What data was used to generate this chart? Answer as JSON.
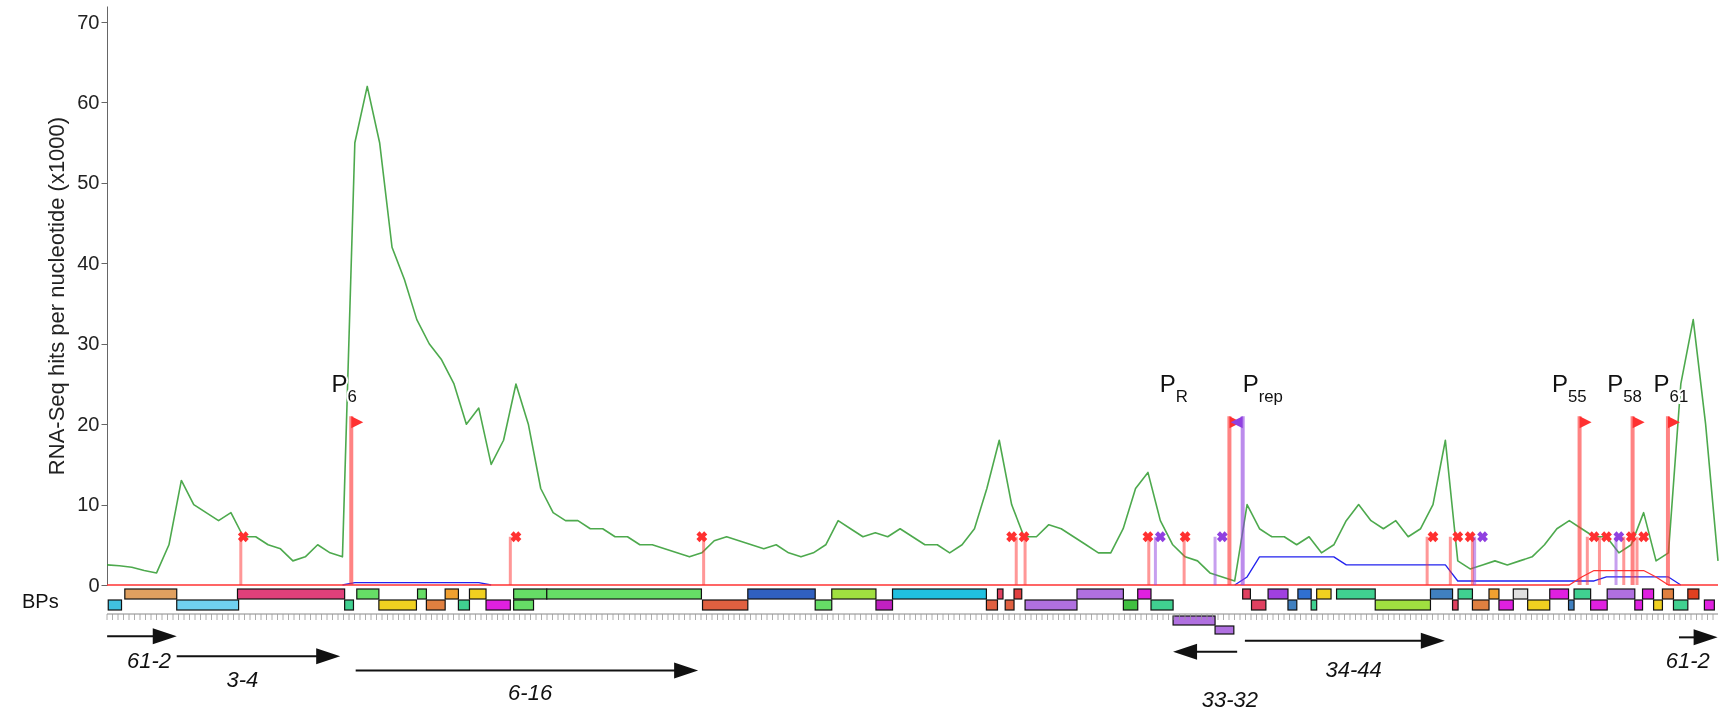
{
  "chart_data": {
    "type": "line",
    "ylabel": "RNA-Seq hits per nucleotide (x1000)",
    "ylim": [
      0,
      72
    ],
    "yticks": [
      0,
      10,
      20,
      30,
      40,
      50,
      60,
      70
    ],
    "line_style": "solid",
    "categories": [
      null,
      null,
      null,
      null,
      null,
      null,
      null,
      null,
      null,
      null,
      null,
      null,
      null,
      null,
      null,
      null,
      null,
      null,
      null,
      null,
      null,
      null,
      null,
      null,
      null,
      null,
      null,
      null,
      null,
      null,
      null,
      null,
      null,
      null,
      null,
      null,
      null,
      null,
      null,
      null,
      null,
      null,
      null,
      null,
      null,
      null,
      null,
      null,
      null,
      null,
      null,
      null,
      null,
      null,
      null,
      null,
      null,
      null,
      null,
      null,
      null,
      null,
      null,
      null,
      null,
      null,
      null,
      null,
      null,
      null,
      null,
      null,
      null,
      null,
      null,
      null,
      null,
      null,
      null,
      null,
      null,
      null,
      null,
      null,
      null,
      null,
      null,
      null,
      null,
      null,
      null,
      null,
      null,
      null,
      null,
      null,
      null,
      null,
      null,
      null,
      null,
      null,
      null,
      null,
      null,
      null,
      null,
      null,
      null,
      null,
      null,
      null,
      null,
      null,
      null,
      null,
      null,
      null,
      null,
      null,
      null,
      null,
      null,
      null,
      null,
      null,
      null,
      null,
      null,
      null,
      null
    ],
    "series": [
      {
        "color": "#2e9a2e",
        "values": [
          2.5,
          2.4,
          2.2,
          1.8,
          1.5,
          5,
          13,
          10,
          9,
          8,
          9,
          6,
          6,
          5,
          4.5,
          3,
          3.5,
          5,
          4,
          3.5,
          55,
          62,
          55,
          42,
          38,
          33,
          30,
          28,
          25,
          20,
          22,
          15,
          18,
          25,
          20,
          12,
          9,
          8,
          8,
          7,
          7,
          6,
          6,
          5,
          5,
          4.5,
          4,
          3.5,
          4,
          5.5,
          6,
          5.5,
          5,
          4.5,
          5,
          4,
          3.5,
          4,
          5,
          8,
          7,
          6,
          6.5,
          6,
          7,
          6,
          5,
          5,
          4,
          5,
          7,
          12,
          18,
          10,
          6,
          6,
          7.5,
          7,
          6,
          5,
          4,
          4,
          7,
          12,
          14,
          8,
          5,
          3.5,
          3,
          1.5,
          1,
          0.5,
          10,
          7,
          6,
          6,
          5,
          6,
          4,
          5,
          8,
          10,
          8,
          7,
          8,
          6,
          7,
          10,
          18,
          3,
          2,
          2.5,
          3,
          2.5,
          3,
          3.5,
          5,
          7,
          8,
          7,
          6,
          6,
          4,
          5,
          9,
          3,
          4,
          25,
          33,
          20,
          3
        ]
      },
      {
        "color": "#2222ee",
        "values": [
          null,
          null,
          null,
          null,
          null,
          null,
          null,
          null,
          null,
          null,
          null,
          null,
          null,
          null,
          null,
          null,
          null,
          null,
          null,
          0,
          0.3,
          0.3,
          0.3,
          0.3,
          0.3,
          0.3,
          0.3,
          0.3,
          0.3,
          0.3,
          0.3,
          0,
          null,
          null,
          null,
          null,
          null,
          null,
          null,
          null,
          null,
          null,
          null,
          null,
          null,
          null,
          null,
          null,
          null,
          null,
          null,
          null,
          null,
          null,
          null,
          null,
          null,
          null,
          null,
          null,
          null,
          null,
          null,
          null,
          null,
          null,
          null,
          null,
          null,
          null,
          null,
          null,
          null,
          null,
          null,
          null,
          null,
          null,
          null,
          null,
          null,
          null,
          null,
          null,
          null,
          null,
          null,
          null,
          null,
          null,
          null,
          0,
          1,
          3.5,
          3.5,
          3.5,
          3.5,
          3.5,
          3.5,
          3.5,
          2.5,
          2.5,
          2.5,
          2.5,
          2.5,
          2.5,
          2.5,
          2.5,
          2.5,
          0.5,
          0.5,
          0.5,
          0.5,
          0.5,
          0.5,
          0.5,
          0.5,
          0.5,
          0.5,
          0.5,
          0.5,
          1,
          1,
          1,
          1,
          1,
          1,
          0,
          null,
          null,
          null
        ]
      },
      {
        "color": "#ff3333",
        "values": [
          0,
          0,
          0,
          0,
          0,
          0,
          0,
          0,
          0,
          0,
          0,
          0,
          0,
          0,
          0,
          0,
          0,
          0,
          0,
          0,
          0,
          0,
          0,
          0,
          0,
          0,
          0,
          0,
          0,
          0,
          0,
          0,
          0,
          0,
          0,
          0,
          0,
          0,
          0,
          0,
          0,
          0,
          0,
          0,
          0,
          0,
          0,
          0,
          0,
          0,
          0,
          0,
          0,
          0,
          0,
          0,
          0,
          0,
          0,
          0,
          0,
          0,
          0,
          0,
          0,
          0,
          0,
          0,
          0,
          0,
          0,
          0,
          0,
          0,
          0,
          0,
          0,
          0,
          0,
          0,
          0,
          0,
          0,
          0,
          0,
          0,
          0,
          0,
          0,
          0,
          0,
          0,
          0,
          0,
          0,
          0,
          0,
          0,
          0,
          0,
          0,
          0,
          0,
          0,
          0,
          0,
          0,
          0,
          0,
          0,
          0,
          0,
          0,
          0,
          0,
          0,
          0,
          0,
          0,
          1,
          1.8,
          1.8,
          1.8,
          1.8,
          1.8,
          1,
          0,
          0,
          0,
          0,
          0
        ]
      },
      {
        "type": "scatter",
        "color": "#ff3030",
        "values": [
          null,
          null,
          null,
          null,
          null,
          null,
          null,
          null,
          null,
          null,
          null,
          6,
          null,
          null,
          null,
          null,
          null,
          null,
          null,
          null,
          null,
          null,
          null,
          null,
          null,
          null,
          null,
          null,
          null,
          null,
          null,
          null,
          null,
          6,
          null,
          null,
          null,
          null,
          null,
          null,
          null,
          null,
          null,
          null,
          null,
          null,
          null,
          null,
          6,
          null,
          null,
          null,
          null,
          null,
          null,
          null,
          null,
          null,
          null,
          null,
          null,
          null,
          null,
          null,
          null,
          null,
          null,
          null,
          null,
          null,
          null,
          null,
          null,
          6,
          6,
          null,
          null,
          null,
          null,
          null,
          null,
          null,
          null,
          null,
          6,
          null,
          null,
          6,
          null,
          null,
          null,
          null,
          null,
          null,
          null,
          null,
          null,
          null,
          null,
          null,
          null,
          null,
          null,
          null,
          null,
          null,
          null,
          6,
          null,
          6,
          6,
          null,
          null,
          null,
          null,
          null,
          null,
          null,
          null,
          null,
          6,
          6,
          null,
          6,
          6,
          null,
          null,
          null,
          null,
          null,
          null
        ]
      },
      {
        "type": "scatter",
        "color": "#9040e0",
        "values": [
          null,
          null,
          null,
          null,
          null,
          null,
          null,
          null,
          null,
          null,
          null,
          null,
          null,
          null,
          null,
          null,
          null,
          null,
          null,
          null,
          null,
          null,
          null,
          null,
          null,
          null,
          null,
          null,
          null,
          null,
          null,
          null,
          null,
          null,
          null,
          null,
          null,
          null,
          null,
          null,
          null,
          null,
          null,
          null,
          null,
          null,
          null,
          null,
          null,
          null,
          null,
          null,
          null,
          null,
          null,
          null,
          null,
          null,
          null,
          null,
          null,
          null,
          null,
          null,
          null,
          null,
          null,
          null,
          null,
          null,
          null,
          null,
          null,
          null,
          null,
          null,
          null,
          null,
          null,
          null,
          null,
          null,
          null,
          null,
          null,
          6,
          null,
          null,
          null,
          null,
          6,
          null,
          null,
          null,
          null,
          null,
          null,
          null,
          null,
          null,
          null,
          null,
          null,
          null,
          null,
          null,
          null,
          null,
          null,
          null,
          null,
          6,
          null,
          null,
          null,
          null,
          null,
          null,
          null,
          null,
          null,
          null,
          6,
          null,
          null,
          null,
          null,
          null,
          null,
          null,
          null
        ]
      }
    ],
    "annotations": [
      "P$_{6}$",
      "P$_{R}$",
      "P$_{rep}$",
      "P$_{55}$",
      "P$_{58}$",
      "P$_{61}$",
      "BPs",
      "61-2",
      "3-4",
      "6-16",
      "33-32",
      "34-44",
      "61-2"
    ]
  }
}
